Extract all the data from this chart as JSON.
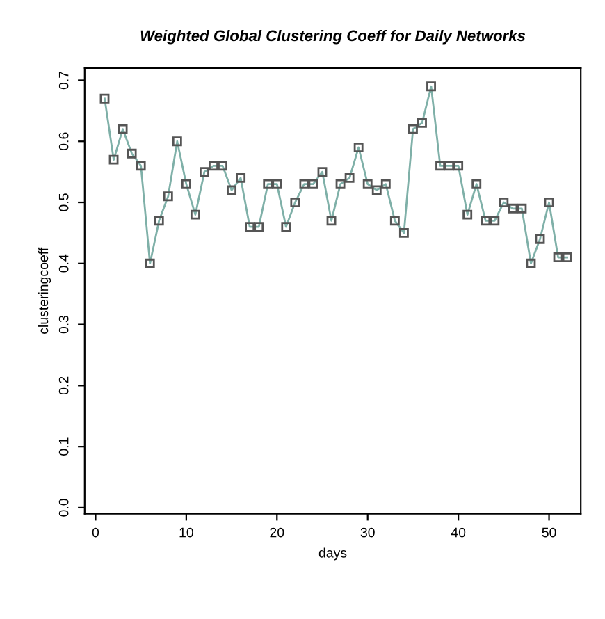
{
  "chart_data": {
    "type": "line",
    "title": "Weighted Global Clustering Coeff for Daily Networks",
    "xlabel": "days",
    "ylabel": "clusteringcoeff",
    "x": [
      1,
      2,
      3,
      4,
      5,
      6,
      7,
      8,
      9,
      10,
      11,
      12,
      13,
      14,
      15,
      16,
      17,
      18,
      19,
      20,
      21,
      22,
      23,
      24,
      25,
      26,
      27,
      28,
      29,
      30,
      31,
      32,
      33,
      34,
      35,
      36,
      37,
      38,
      39,
      40,
      41,
      42,
      43,
      44,
      45,
      46,
      47,
      48,
      49,
      50,
      51,
      52
    ],
    "series": [
      {
        "color": "#7fb0a8",
        "values": [
          0.67,
          0.57,
          0.62,
          0.58,
          0.56,
          0.4,
          0.47,
          0.51,
          0.6,
          0.53,
          0.48,
          0.55,
          0.56,
          0.56,
          0.52,
          0.54,
          0.46,
          0.46,
          0.53,
          0.53,
          0.46,
          0.5,
          0.53,
          0.53,
          0.55,
          0.47,
          0.53,
          0.54,
          0.59,
          0.53,
          0.52,
          0.53,
          0.47,
          0.45,
          0.62,
          0.63,
          0.69,
          0.56,
          0.56,
          0.56,
          0.48,
          0.53,
          0.47,
          0.47,
          0.5,
          0.49,
          0.49,
          0.4,
          0.44,
          0.5,
          0.41,
          0.41
        ]
      }
    ],
    "marker": "square",
    "line_style": "solid",
    "grid": false,
    "legend": false,
    "xlim": [
      -1.2,
      53.5
    ],
    "ylim": [
      -0.01,
      0.72
    ],
    "xticks": [
      0,
      10,
      20,
      30,
      40,
      50
    ],
    "yticks": [
      {
        "value": 0,
        "label": "0.0"
      },
      0.1,
      0.2,
      0.3,
      0.4,
      0.5,
      0.6,
      0.7
    ]
  }
}
